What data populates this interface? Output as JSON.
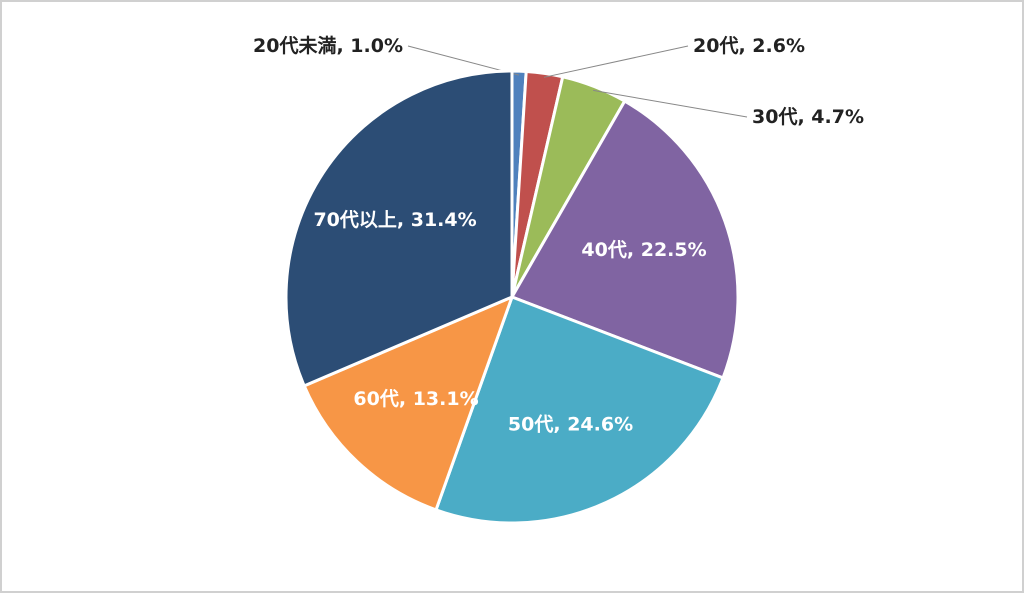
{
  "chart_data": {
    "type": "pie",
    "categories": [
      "20代未満",
      "20代",
      "30代",
      "40代",
      "50代",
      "60代",
      "70代以上"
    ],
    "values": [
      1.0,
      2.6,
      4.7,
      22.5,
      24.6,
      13.1,
      31.4
    ],
    "value_labels": [
      "1.0%",
      "2.6%",
      "4.7%",
      "22.5%",
      "24.6%",
      "13.1%",
      "31.4%"
    ],
    "label_separator": ", ",
    "colors": [
      "#4f81bd",
      "#c0504d",
      "#9bbb59",
      "#8064a2",
      "#4bacc6",
      "#f79646",
      "#2c4d75"
    ]
  }
}
